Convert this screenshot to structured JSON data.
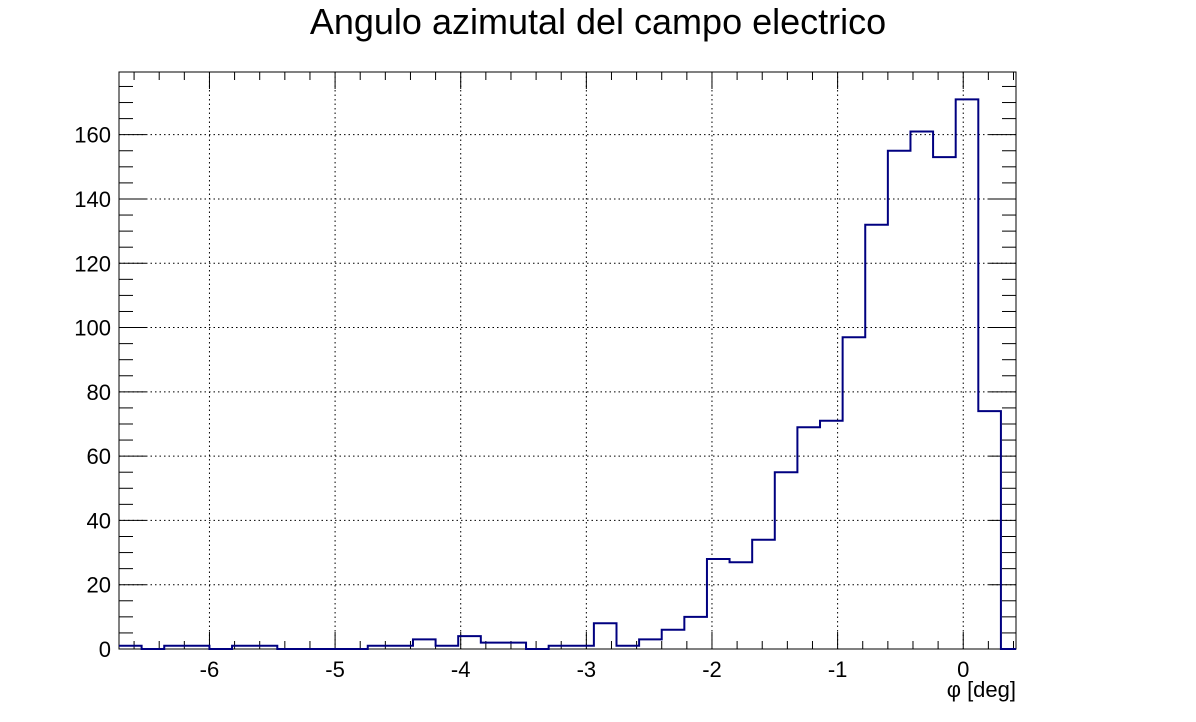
{
  "chart_data": {
    "type": "bar",
    "style": "step-histogram",
    "title": "Angulo azimutal del campo electrico",
    "xlabel": "φ [deg]",
    "ylabel": "",
    "xlim": [
      -6.72,
      0.42
    ],
    "ylim": [
      0,
      179.5
    ],
    "grid": true,
    "series_color": "#000080",
    "x_ticks": [
      -6,
      -5,
      -4,
      -3,
      -2,
      -1,
      0
    ],
    "y_ticks": [
      0,
      20,
      40,
      60,
      80,
      100,
      120,
      140,
      160
    ],
    "bin_edges": [
      -6.72,
      -6.54,
      -6.36,
      -6.18,
      -6.0,
      -5.82,
      -5.64,
      -5.46,
      -5.28,
      -5.1,
      -4.92,
      -4.74,
      -4.56,
      -4.38,
      -4.2,
      -4.02,
      -3.84,
      -3.66,
      -3.48,
      -3.3,
      -3.12,
      -2.94,
      -2.76,
      -2.58,
      -2.4,
      -2.22,
      -2.04,
      -1.86,
      -1.68,
      -1.5,
      -1.32,
      -1.14,
      -0.96,
      -0.78,
      -0.6,
      -0.42,
      -0.24,
      -0.06,
      0.12,
      0.3,
      0.42
    ],
    "values": [
      1,
      0,
      1,
      1,
      0,
      1,
      1,
      0,
      0,
      0,
      0,
      1,
      1,
      3,
      1,
      4,
      2,
      2,
      0,
      1,
      1,
      8,
      1,
      3,
      6,
      10,
      28,
      27,
      34,
      55,
      69,
      71,
      97,
      132,
      155,
      161,
      153,
      171,
      74,
      0
    ]
  }
}
